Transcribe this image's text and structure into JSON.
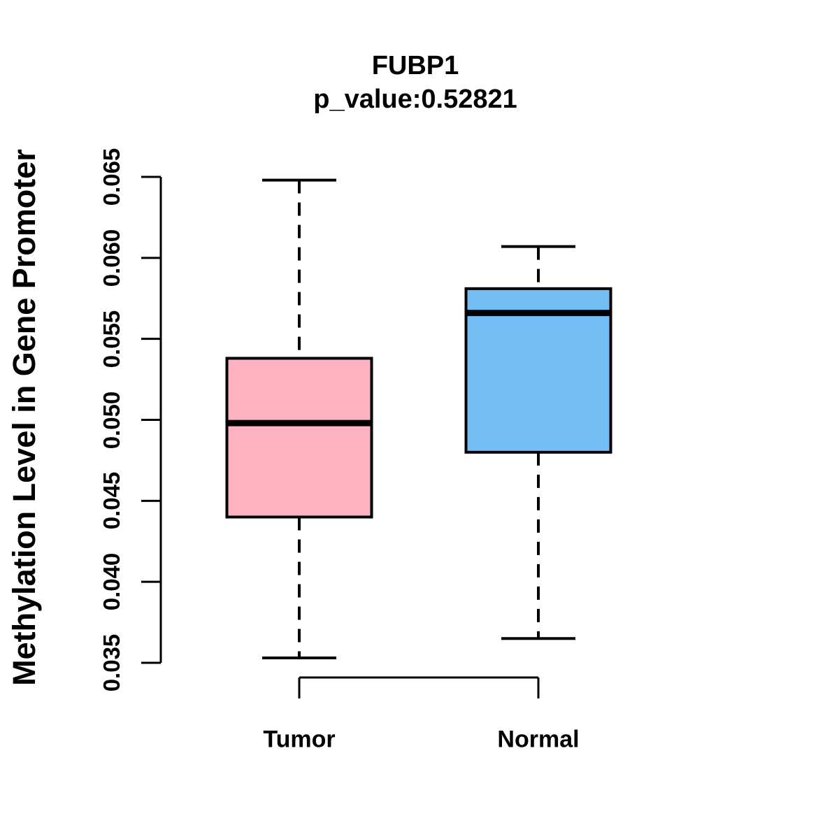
{
  "page": {
    "background": "#FFFFFF",
    "text_color": "#000000"
  },
  "chart_data": {
    "type": "boxplot",
    "title": "FUBP1",
    "subtitle": "p_value:0.52821",
    "ylabel": "Methylation Level in Gene Promoter",
    "xlabel": "",
    "ylim": [
      0.035,
      0.065
    ],
    "yticks": [
      0.035,
      0.04,
      0.045,
      0.05,
      0.055,
      0.06,
      0.065
    ],
    "ytick_decimals": 3,
    "categories": [
      "Tumor",
      "Normal"
    ],
    "series": [
      {
        "name": "Tumor",
        "fill_color": "#FFB3C2",
        "whisker_low": 0.0353,
        "q1": 0.044,
        "median": 0.0498,
        "q3": 0.0538,
        "whisker_high": 0.0648
      },
      {
        "name": "Normal",
        "fill_color": "#74BEF6",
        "whisker_low": 0.0365,
        "q1": 0.048,
        "median": 0.0566,
        "q3": 0.0581,
        "whisker_high": 0.0607
      }
    ],
    "stroke_color": "#000000",
    "whisker_style": "dashed",
    "legend_position": "none",
    "grid": false
  }
}
